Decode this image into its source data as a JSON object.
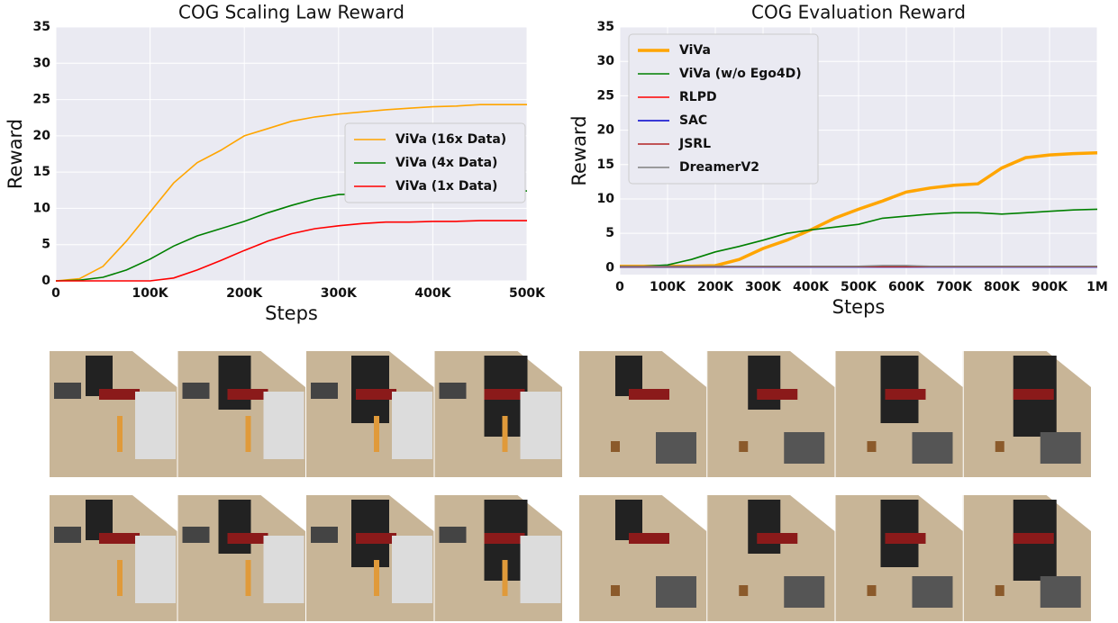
{
  "chart_data": [
    {
      "type": "line",
      "title": "COG Scaling Law Reward",
      "x_label": "Steps",
      "y_label": "Reward",
      "x": [
        0,
        25000,
        50000,
        75000,
        100000,
        125000,
        150000,
        175000,
        200000,
        225000,
        250000,
        275000,
        300000,
        325000,
        350000,
        375000,
        400000,
        425000,
        450000,
        475000,
        500000
      ],
      "series": [
        {
          "name": "ViVa (16x Data)",
          "color": "#ffa500",
          "width": 1.6,
          "values": [
            0,
            0.3,
            2,
            5.5,
            9.5,
            13.5,
            16.3,
            18,
            20,
            21,
            22,
            22.6,
            23,
            23.3,
            23.6,
            23.8,
            24,
            24.1,
            24.3,
            24.3,
            24.3
          ]
        },
        {
          "name": "ViVa (4x Data)",
          "color": "#008000",
          "width": 1.6,
          "values": [
            0,
            0.1,
            0.5,
            1.5,
            3,
            4.8,
            6.2,
            7.2,
            8.2,
            9.4,
            10.4,
            11.3,
            11.9,
            12,
            12.1,
            12.1,
            12.2,
            12.2,
            12.3,
            12.3,
            12.4
          ]
        },
        {
          "name": "ViVa (1x Data)",
          "color": "#ff0000",
          "width": 1.6,
          "values": [
            0,
            0,
            0,
            0,
            0,
            0.4,
            1.5,
            2.8,
            4.2,
            5.5,
            6.5,
            7.2,
            7.6,
            7.9,
            8.1,
            8.1,
            8.2,
            8.2,
            8.3,
            8.3,
            8.3
          ]
        }
      ],
      "xlim": [
        0,
        500000
      ],
      "ylim": [
        0,
        35
      ],
      "xticks": [
        0,
        {
          "value": 100000,
          "label": "100K"
        },
        {
          "value": 200000,
          "label": "200K"
        },
        {
          "value": 300000,
          "label": "300K"
        },
        {
          "value": 400000,
          "label": "400K"
        },
        {
          "value": 500000,
          "label": "500K"
        }
      ],
      "yticks": [
        0,
        5,
        10,
        15,
        20,
        25,
        30,
        35
      ],
      "grid": true,
      "legend": "center right"
    },
    {
      "type": "line",
      "title": "COG Evaluation Reward",
      "x_label": "Steps",
      "y_label": "Reward",
      "x": [
        0,
        50000,
        100000,
        150000,
        200000,
        250000,
        300000,
        350000,
        400000,
        450000,
        500000,
        550000,
        600000,
        650000,
        700000,
        750000,
        800000,
        850000,
        900000,
        950000,
        1000000
      ],
      "series": [
        {
          "name": "ViVa",
          "color": "#ffa500",
          "width": 3.5,
          "values": [
            0.2,
            0.2,
            0.2,
            0.2,
            0.3,
            1.2,
            2.8,
            4,
            5.5,
            7.2,
            8.5,
            9.7,
            11,
            11.6,
            12,
            12.2,
            14.5,
            16,
            16.4,
            16.6,
            16.7
          ]
        },
        {
          "name": "ViVa (w/o Ego4D)",
          "color": "#008000",
          "width": 1.6,
          "values": [
            0.2,
            0.2,
            0.4,
            1.2,
            2.3,
            3.1,
            4,
            5,
            5.5,
            5.9,
            6.3,
            7.2,
            7.5,
            7.8,
            8,
            8,
            7.8,
            8,
            8.2,
            8.4,
            8.5
          ]
        },
        {
          "name": "RLPD",
          "color": "#ff0000",
          "width": 1.6,
          "values": [
            0.2,
            0.2,
            0.2,
            0.2,
            0.2,
            0.2,
            0.2,
            0.2,
            0.2,
            0.2,
            0.2,
            0.2,
            0.2,
            0.2,
            0.2,
            0.2,
            0.2,
            0.2,
            0.2,
            0.2,
            0.2
          ]
        },
        {
          "name": "SAC",
          "color": "#0000cd",
          "width": 1.6,
          "values": [
            0.1,
            0.1,
            0.1,
            0.1,
            0.1,
            0.1,
            0.1,
            0.1,
            0.1,
            0.1,
            0.1,
            0.1,
            0.1,
            0.1,
            0.1,
            0.1,
            0.1,
            0.1,
            0.1,
            0.1,
            0.1
          ]
        },
        {
          "name": "JSRL",
          "color": "#b22222",
          "width": 1.6,
          "values": [
            0.15,
            0.15,
            0.15,
            0.15,
            0.15,
            0.15,
            0.15,
            0.15,
            0.15,
            0.15,
            0.15,
            0.15,
            0.15,
            0.15,
            0.15,
            0.15,
            0.15,
            0.15,
            0.15,
            0.15,
            0.15
          ]
        },
        {
          "name": "DreamerV2",
          "color": "#808080",
          "width": 1.6,
          "values": [
            0.2,
            0.2,
            0.2,
            0.2,
            0.2,
            0.2,
            0.2,
            0.2,
            0.2,
            0.2,
            0.2,
            0.3,
            0.3,
            0.2,
            0.2,
            0.2,
            0.2,
            0.2,
            0.2,
            0.2,
            0.2
          ]
        }
      ],
      "xlim": [
        0,
        1000000
      ],
      "ylim": [
        -1,
        35
      ],
      "xticks": [
        0,
        {
          "value": 100000,
          "label": "100K"
        },
        {
          "value": 200000,
          "label": "200K"
        },
        {
          "value": 300000,
          "label": "300K"
        },
        {
          "value": 400000,
          "label": "400K"
        },
        {
          "value": 500000,
          "label": "500K"
        },
        {
          "value": 600000,
          "label": "600K"
        },
        {
          "value": 700000,
          "label": "700K"
        },
        {
          "value": 800000,
          "label": "800K"
        },
        {
          "value": 900000,
          "label": "900K"
        },
        {
          "value": 1000000,
          "label": "1M"
        }
      ],
      "yticks": [
        0,
        5,
        10,
        15,
        20,
        25,
        30,
        35
      ],
      "grid": true,
      "legend": "upper left"
    }
  ]
}
